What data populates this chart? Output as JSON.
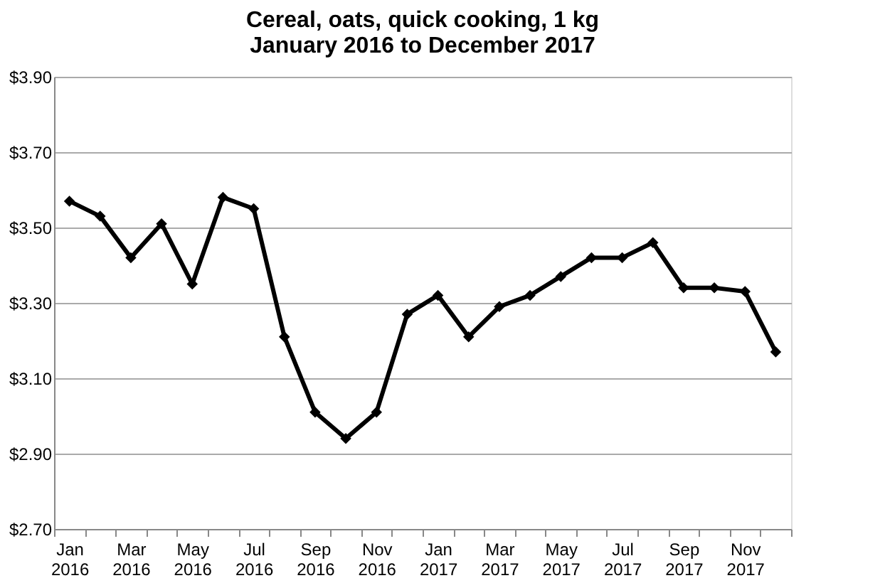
{
  "chart_data": {
    "type": "line",
    "title": "Cereal, oats, quick cooking, 1 kg",
    "subtitle": "January 2016 to December 2017",
    "categories": [
      "Jan 2016",
      null,
      "Mar 2016",
      null,
      "May 2016",
      null,
      "Jul 2016",
      null,
      "Sep 2016",
      null,
      "Nov 2016",
      null,
      "Jan 2017",
      null,
      "Mar 2017",
      null,
      "May 2017",
      null,
      "Jul 2017",
      null,
      "Sep 2017",
      null,
      "Nov 2017",
      null
    ],
    "series": [
      {
        "color": "#000000",
        "values": [
          3.57,
          3.53,
          3.42,
          3.51,
          3.35,
          3.58,
          3.55,
          3.21,
          3.01,
          2.94,
          3.01,
          3.27,
          3.32,
          3.21,
          3.29,
          3.32,
          3.37,
          3.42,
          3.42,
          3.46,
          3.34,
          3.34,
          3.33,
          3.17
        ]
      }
    ],
    "ylim": [
      2.7,
      3.9
    ],
    "yticks": [
      {
        "value": 2.7,
        "label": "$2.70"
      },
      {
        "value": 2.9,
        "label": "$2.90"
      },
      {
        "value": 3.1,
        "label": "$3.10"
      },
      {
        "value": 3.3,
        "label": "$3.30"
      },
      {
        "value": 3.5,
        "label": "$3.50"
      },
      {
        "value": 3.7,
        "label": "$3.70"
      },
      {
        "value": 3.9,
        "label": "$3.90"
      }
    ],
    "grid": "y",
    "marker": "diamond",
    "line_style": "solid"
  }
}
